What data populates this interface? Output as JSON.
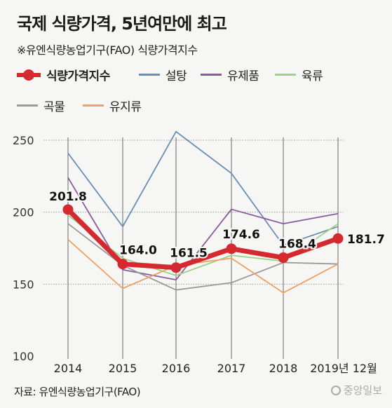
{
  "header": {
    "title": "국제 식량가격, 5년여만에 최고",
    "subtitle": "※유엔식량농업기구(FAO) 식량가격지수"
  },
  "footer": {
    "source": "자료: 유엔식량농업기구(FAO)",
    "logo": "중앙일보"
  },
  "colors": {
    "food_index": "#d42a2f",
    "sugar": "#6a8db5",
    "dairy": "#8c5a9e",
    "meat": "#9fd08a",
    "cereals": "#999999",
    "oils": "#f0a060",
    "gridline": "#9a9a9a"
  },
  "chart_data": {
    "type": "line",
    "categories": [
      "2014",
      "2015",
      "2016",
      "2017",
      "2018",
      "2019년 12월"
    ],
    "ylim": [
      100,
      250
    ],
    "yticks": [
      100,
      150,
      200,
      250
    ],
    "grid": true,
    "legend_position": "top",
    "series": [
      {
        "key": "sugar",
        "name": "설탕",
        "values": [
          241,
          190,
          256,
          227,
          177,
          190
        ]
      },
      {
        "key": "dairy",
        "name": "유제품",
        "values": [
          224,
          160,
          153,
          202,
          192,
          199
        ]
      },
      {
        "key": "meat",
        "name": "육류",
        "values": [
          198,
          168,
          156,
          170,
          166,
          192
        ]
      },
      {
        "key": "cereals",
        "name": "곡물",
        "values": [
          192,
          163,
          146,
          151,
          165,
          164
        ]
      },
      {
        "key": "oils",
        "name": "유지류",
        "values": [
          181,
          147,
          163,
          168,
          144,
          164
        ]
      },
      {
        "key": "food_index",
        "name": "식량가격지수",
        "values": [
          201.8,
          164.0,
          161.5,
          174.6,
          168.4,
          181.7
        ],
        "labels": [
          "201.8",
          "164.0",
          "161.5",
          "174.6",
          "168.4",
          "181.7"
        ],
        "highlight": true
      }
    ]
  }
}
